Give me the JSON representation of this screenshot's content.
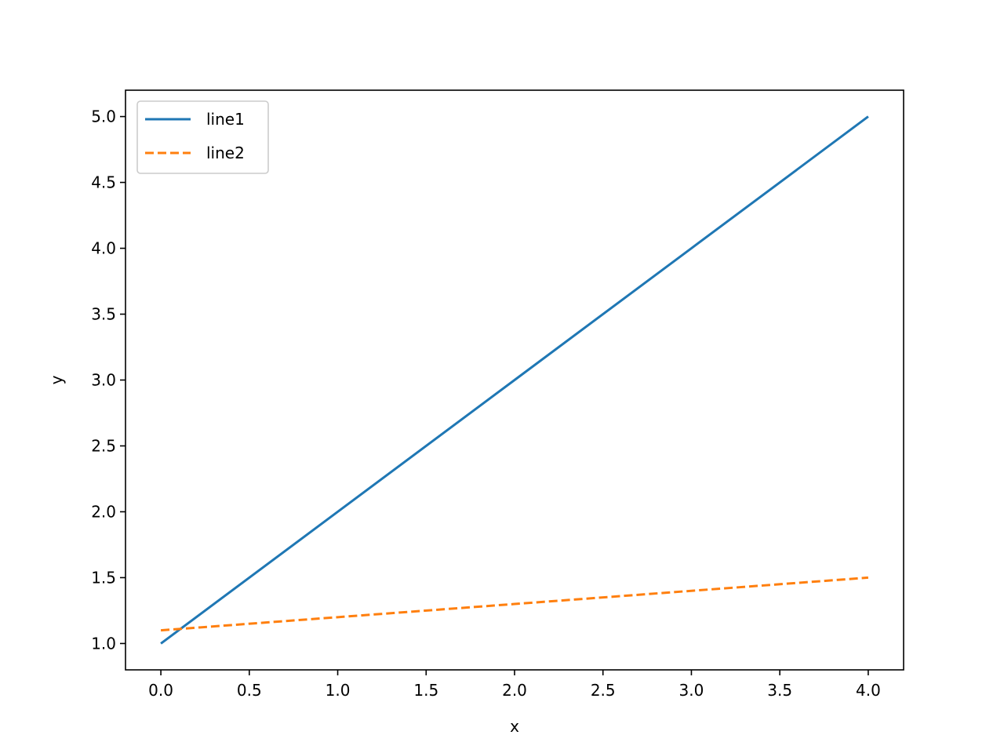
{
  "chart_data": {
    "type": "line",
    "title": "",
    "xlabel": "x",
    "ylabel": "y",
    "xlim": [
      -0.2,
      4.2
    ],
    "ylim": [
      0.8,
      5.2
    ],
    "xticks": [
      0.0,
      0.5,
      1.0,
      1.5,
      2.0,
      2.5,
      3.0,
      3.5,
      4.0
    ],
    "xtick_labels": [
      "0.0",
      "0.5",
      "1.0",
      "1.5",
      "2.0",
      "2.5",
      "3.0",
      "3.5",
      "4.0"
    ],
    "yticks": [
      1.0,
      1.5,
      2.0,
      2.5,
      3.0,
      3.5,
      4.0,
      4.5,
      5.0
    ],
    "ytick_labels": [
      "1.0",
      "1.5",
      "2.0",
      "2.5",
      "3.0",
      "3.5",
      "4.0",
      "4.5",
      "5.0"
    ],
    "grid": false,
    "legend_position": "top-left",
    "series": [
      {
        "name": "line1",
        "x": [
          0,
          1,
          2,
          3,
          4
        ],
        "y": [
          1,
          2,
          3,
          4,
          5
        ],
        "color": "#1f77b4",
        "style": "solid"
      },
      {
        "name": "line2",
        "x": [
          0,
          1,
          2,
          3,
          4
        ],
        "y": [
          1.1,
          1.2,
          1.3,
          1.4,
          1.5
        ],
        "color": "#ff7f0e",
        "style": "dashed"
      }
    ]
  }
}
